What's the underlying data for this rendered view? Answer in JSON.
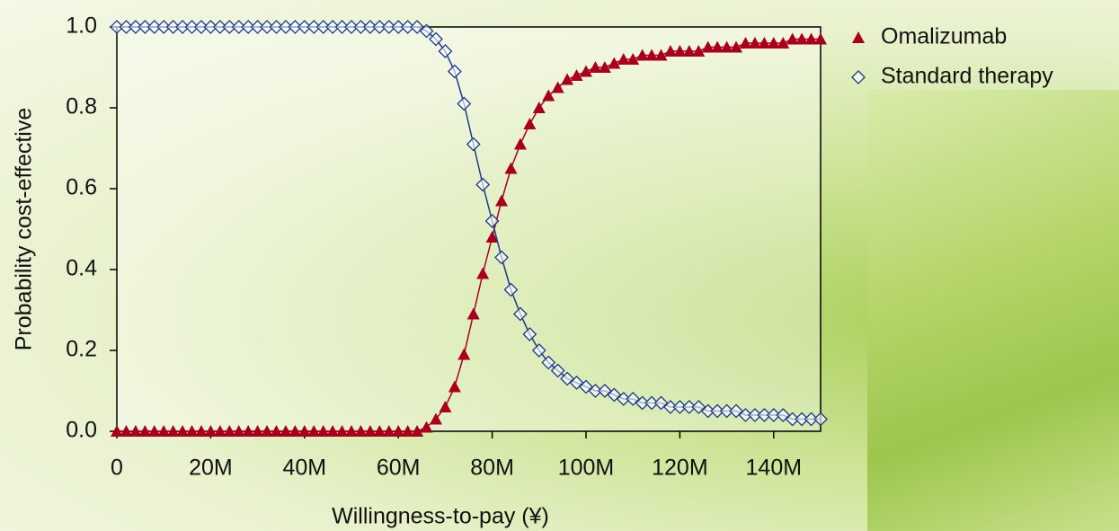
{
  "chart_data": {
    "type": "line",
    "x_label": "Willingness-to-pay (¥)",
    "y_label": "Probability cost-effective",
    "x": [
      0,
      2000000,
      4000000,
      6000000,
      8000000,
      10000000,
      12000000,
      14000000,
      16000000,
      18000000,
      20000000,
      22000000,
      24000000,
      26000000,
      28000000,
      30000000,
      32000000,
      34000000,
      36000000,
      38000000,
      40000000,
      42000000,
      44000000,
      46000000,
      48000000,
      50000000,
      52000000,
      54000000,
      56000000,
      58000000,
      60000000,
      62000000,
      64000000,
      66000000,
      68000000,
      70000000,
      72000000,
      74000000,
      76000000,
      78000000,
      80000000,
      82000000,
      84000000,
      86000000,
      88000000,
      90000000,
      92000000,
      94000000,
      96000000,
      98000000,
      100000000,
      102000000,
      104000000,
      106000000,
      108000000,
      110000000,
      112000000,
      114000000,
      116000000,
      118000000,
      120000000,
      122000000,
      124000000,
      126000000,
      128000000,
      130000000,
      132000000,
      134000000,
      136000000,
      138000000,
      140000000,
      142000000,
      144000000,
      146000000,
      148000000,
      150000000
    ],
    "series": [
      {
        "name": "Omalizumab",
        "color": "#a8001c",
        "marker": "triangle",
        "values": [
          0,
          0,
          0,
          0,
          0,
          0,
          0,
          0,
          0,
          0,
          0,
          0,
          0,
          0,
          0,
          0,
          0,
          0,
          0,
          0,
          0,
          0,
          0,
          0,
          0,
          0,
          0,
          0,
          0,
          0,
          0,
          0,
          0,
          0.01,
          0.03,
          0.06,
          0.11,
          0.19,
          0.29,
          0.39,
          0.48,
          0.57,
          0.65,
          0.71,
          0.76,
          0.8,
          0.83,
          0.85,
          0.87,
          0.88,
          0.89,
          0.9,
          0.9,
          0.91,
          0.92,
          0.92,
          0.93,
          0.93,
          0.93,
          0.94,
          0.94,
          0.94,
          0.94,
          0.95,
          0.95,
          0.95,
          0.95,
          0.96,
          0.96,
          0.96,
          0.96,
          0.96,
          0.97,
          0.97,
          0.97,
          0.97
        ]
      },
      {
        "name": "Standard therapy",
        "color": "#1c3a8c",
        "marker": "diamond",
        "values": [
          1,
          1,
          1,
          1,
          1,
          1,
          1,
          1,
          1,
          1,
          1,
          1,
          1,
          1,
          1,
          1,
          1,
          1,
          1,
          1,
          1,
          1,
          1,
          1,
          1,
          1,
          1,
          1,
          1,
          1,
          1,
          1,
          1,
          0.99,
          0.97,
          0.94,
          0.89,
          0.81,
          0.71,
          0.61,
          0.52,
          0.43,
          0.35,
          0.29,
          0.24,
          0.2,
          0.17,
          0.15,
          0.13,
          0.12,
          0.11,
          0.1,
          0.1,
          0.09,
          0.08,
          0.08,
          0.07,
          0.07,
          0.07,
          0.06,
          0.06,
          0.06,
          0.06,
          0.05,
          0.05,
          0.05,
          0.05,
          0.04,
          0.04,
          0.04,
          0.04,
          0.04,
          0.03,
          0.03,
          0.03,
          0.03
        ]
      }
    ],
    "xlim": [
      0,
      150000000
    ],
    "xticks": [
      0,
      {
        "value": 20000000,
        "label": "20M"
      },
      {
        "value": 40000000,
        "label": "40M"
      },
      {
        "value": 60000000,
        "label": "60M"
      },
      {
        "value": 80000000,
        "label": "80M"
      },
      {
        "value": 100000000,
        "label": "100M"
      },
      {
        "value": 120000000,
        "label": "120M"
      },
      {
        "value": 140000000,
        "label": "140M"
      }
    ],
    "ylim": [
      0,
      1
    ],
    "yticks": [
      {
        "value": 0,
        "label": "0.0"
      },
      0.2,
      0.4,
      0.6,
      0.8,
      {
        "value": 1,
        "label": "1.0"
      }
    ],
    "grid": false
  }
}
